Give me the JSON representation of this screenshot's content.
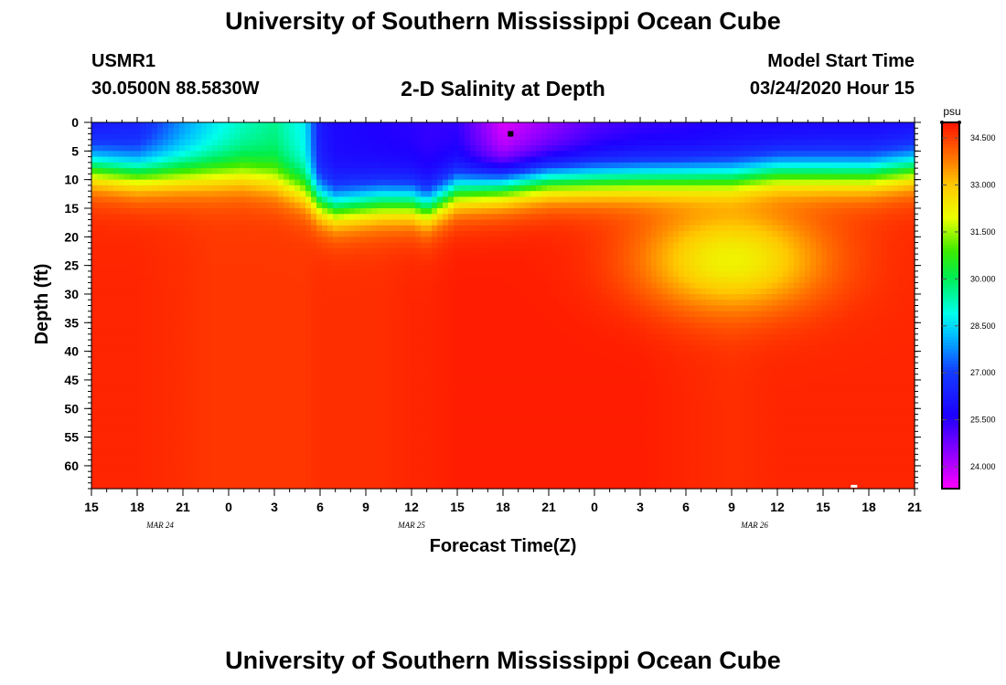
{
  "header": {
    "title": "University of Southern Mississippi Ocean Cube",
    "station_id": "USMR1",
    "station_coords": "30.0500N 88.5830W",
    "plot_title": "2-D Salinity at Depth",
    "model_start_label": "Model Start Time",
    "model_start_value": "03/24/2020 Hour 15"
  },
  "footer": {
    "title": "University of Southern Mississippi Ocean Cube"
  },
  "chart_data": {
    "type": "heatmap",
    "title": "2-D Salinity at Depth",
    "xlabel": "Forecast Time(Z)",
    "ylabel": "Depth (ft)",
    "x_range_hours": [
      0,
      54
    ],
    "ylim": [
      64,
      0
    ],
    "x_ticks": [
      {
        "h": 0,
        "label": "15"
      },
      {
        "h": 3,
        "label": "18"
      },
      {
        "h": 6,
        "label": "21"
      },
      {
        "h": 9,
        "label": "0"
      },
      {
        "h": 12,
        "label": "3"
      },
      {
        "h": 15,
        "label": "6"
      },
      {
        "h": 18,
        "label": "9"
      },
      {
        "h": 21,
        "label": "12"
      },
      {
        "h": 24,
        "label": "15"
      },
      {
        "h": 27,
        "label": "18"
      },
      {
        "h": 30,
        "label": "21"
      },
      {
        "h": 33,
        "label": "0"
      },
      {
        "h": 36,
        "label": "3"
      },
      {
        "h": 39,
        "label": "6"
      },
      {
        "h": 42,
        "label": "9"
      },
      {
        "h": 45,
        "label": "12"
      },
      {
        "h": 48,
        "label": "15"
      },
      {
        "h": 51,
        "label": "18"
      },
      {
        "h": 54,
        "label": "21"
      }
    ],
    "date_labels": [
      {
        "h": 4.5,
        "label": "MAR 24"
      },
      {
        "h": 21,
        "label": "MAR 25"
      },
      {
        "h": 43.5,
        "label": "MAR 26"
      }
    ],
    "y_ticks": [
      0,
      5,
      10,
      15,
      20,
      25,
      30,
      35,
      40,
      45,
      50,
      55,
      60
    ],
    "colorbar": {
      "units": "psu",
      "vmin": 23.3,
      "vmax": 35.0,
      "ticks": [
        "34.500",
        "33.000",
        "31.500",
        "30.000",
        "28.500",
        "27.000",
        "25.500",
        "24.000"
      ]
    },
    "columns": [
      {
        "h": 0,
        "top": 26.0,
        "deep": 34.8,
        "mld": 8
      },
      {
        "h": 3,
        "top": 26.3,
        "deep": 34.8,
        "mld": 9
      },
      {
        "h": 6,
        "top": 27.8,
        "deep": 34.7,
        "mld": 9
      },
      {
        "h": 8,
        "top": 28.6,
        "deep": 34.6,
        "mld": 9
      },
      {
        "h": 10,
        "top": 29.2,
        "deep": 34.6,
        "mld": 9
      },
      {
        "h": 12,
        "top": 29.6,
        "deep": 34.6,
        "mld": 10
      },
      {
        "h": 14,
        "top": 28.7,
        "deep": 34.6,
        "mld": 12
      },
      {
        "h": 15,
        "top": 26.2,
        "deep": 34.7,
        "mld": 14
      },
      {
        "h": 16,
        "top": 25.8,
        "deep": 34.7,
        "mld": 15
      },
      {
        "h": 19,
        "top": 25.6,
        "deep": 34.7,
        "mld": 14
      },
      {
        "h": 21,
        "top": 25.5,
        "deep": 34.8,
        "mld": 14
      },
      {
        "h": 22,
        "top": 25.4,
        "deep": 34.8,
        "mld": 15
      },
      {
        "h": 24,
        "top": 25.4,
        "deep": 34.9,
        "mld": 12
      },
      {
        "h": 27,
        "top": 23.6,
        "deep": 34.9,
        "mld": 11
      },
      {
        "h": 30,
        "top": 24.3,
        "deep": 34.9,
        "mld": 10
      },
      {
        "h": 33,
        "top": 25.0,
        "deep": 34.9,
        "mld": 10
      },
      {
        "h": 36,
        "top": 25.3,
        "deep": 34.9,
        "mld": 10
      },
      {
        "h": 39,
        "top": 25.4,
        "deep": 34.8,
        "mld": 10
      },
      {
        "h": 42,
        "top": 25.6,
        "deep": 34.7,
        "mld": 10
      },
      {
        "h": 45,
        "top": 25.6,
        "deep": 34.8,
        "mld": 9
      },
      {
        "h": 48,
        "top": 25.7,
        "deep": 34.8,
        "mld": 9
      },
      {
        "h": 51,
        "top": 25.7,
        "deep": 34.8,
        "mld": 9
      },
      {
        "h": 54,
        "top": 25.8,
        "deep": 34.8,
        "mld": 8
      }
    ],
    "subsurface_dips": [
      {
        "h": 42,
        "depth": 24,
        "min": 32.2,
        "h_halfwidth": 6,
        "depth_halfwidth": 9
      }
    ],
    "markers": [
      {
        "h": 27.5,
        "depth": 2
      },
      {
        "h": 50,
        "depth": 63.5
      }
    ]
  }
}
